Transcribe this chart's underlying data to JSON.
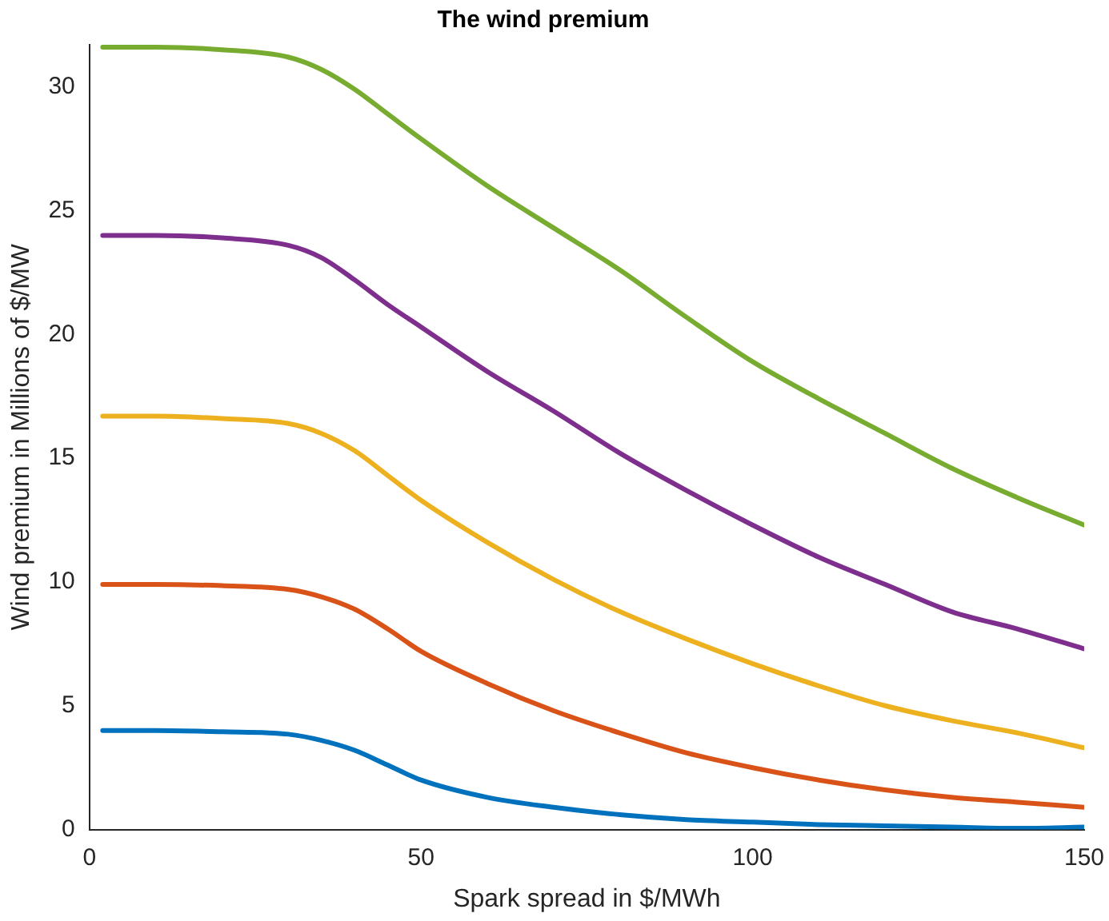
{
  "chart_data": {
    "type": "line",
    "title": "The wind premium",
    "xlabel": "Spark spread in $/MWh",
    "ylabel": "Wind premium in Millions of $/MW",
    "x": [
      2,
      10,
      20,
      30,
      35,
      40,
      45,
      50,
      60,
      70,
      80,
      90,
      100,
      110,
      120,
      130,
      140,
      150
    ],
    "series": [
      {
        "color": "#0072bd",
        "values": [
          4.0,
          4.0,
          3.95,
          3.85,
          3.6,
          3.2,
          2.6,
          2.0,
          1.3,
          0.9,
          0.6,
          0.4,
          0.3,
          0.2,
          0.15,
          0.1,
          0.05,
          0.1
        ]
      },
      {
        "color": "#d95319",
        "values": [
          9.9,
          9.9,
          9.85,
          9.7,
          9.4,
          8.9,
          8.1,
          7.2,
          5.9,
          4.8,
          3.9,
          3.1,
          2.5,
          2.0,
          1.6,
          1.3,
          1.1,
          0.9
        ]
      },
      {
        "color": "#edb120",
        "values": [
          16.7,
          16.7,
          16.6,
          16.4,
          16.0,
          15.3,
          14.3,
          13.3,
          11.6,
          10.1,
          8.8,
          7.7,
          6.7,
          5.8,
          5.0,
          4.4,
          3.9,
          3.3
        ]
      },
      {
        "color": "#7e2f8e",
        "values": [
          24.0,
          24.0,
          23.9,
          23.6,
          23.1,
          22.2,
          21.2,
          20.3,
          18.5,
          16.9,
          15.2,
          13.7,
          12.3,
          11.0,
          9.9,
          8.8,
          8.1,
          7.3
        ]
      },
      {
        "color": "#77ac30",
        "values": [
          31.6,
          31.6,
          31.5,
          31.2,
          30.7,
          29.9,
          28.9,
          27.9,
          26.0,
          24.3,
          22.6,
          20.7,
          18.9,
          17.4,
          16.0,
          14.6,
          13.4,
          12.3
        ]
      }
    ],
    "xlim": [
      0,
      150
    ],
    "xticks": [
      0,
      50,
      100,
      150
    ],
    "ylim": [
      0,
      31.7
    ],
    "yticks": [
      0,
      5,
      10,
      15,
      20,
      25,
      30
    ],
    "grid": false,
    "legend": false,
    "marker": "none",
    "line_style": "solid"
  }
}
